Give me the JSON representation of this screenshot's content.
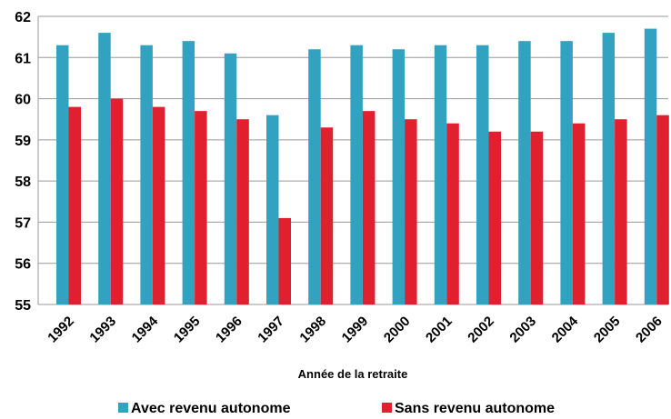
{
  "chart_data": {
    "type": "bar",
    "x_label": "Année de la retraite",
    "categories": [
      "1992",
      "1993",
      "1994",
      "1995",
      "1996",
      "1997",
      "1998",
      "1999",
      "2000",
      "2001",
      "2002",
      "2003",
      "2004",
      "2005",
      "2006"
    ],
    "series": [
      {
        "name": "Avec revenu autonome",
        "color": "#31a3c0",
        "values": [
          61.3,
          61.6,
          61.3,
          61.4,
          61.1,
          59.6,
          61.2,
          61.3,
          61.2,
          61.3,
          61.3,
          61.4,
          61.4,
          61.6,
          61.7
        ]
      },
      {
        "name": "Sans revenu autonome",
        "color": "#e0202e",
        "values": [
          59.8,
          60.0,
          59.8,
          59.7,
          59.5,
          57.1,
          59.3,
          59.7,
          59.5,
          59.4,
          59.2,
          59.2,
          59.4,
          59.5,
          59.6
        ]
      }
    ],
    "ylim": [
      55,
      62
    ],
    "yticks": [
      55,
      56,
      57,
      58,
      59,
      60,
      61,
      62
    ],
    "grid": true,
    "legend": "bottom"
  }
}
